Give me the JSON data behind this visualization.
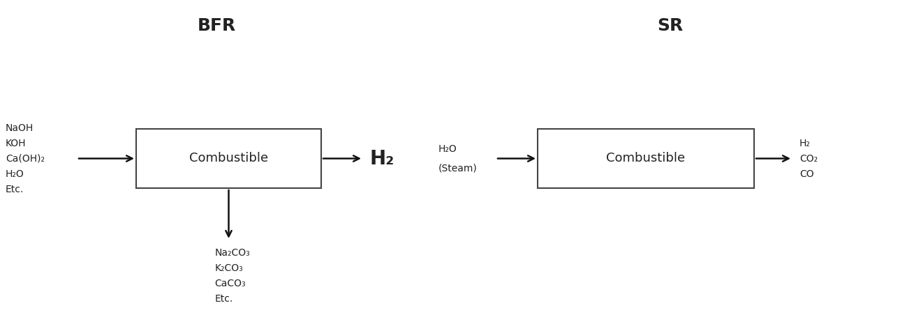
{
  "title_bfr": "BFR",
  "title_sr": "SR",
  "bfr_box_label": "Combustible",
  "sr_box_label": "Combustible",
  "bfr_inputs": [
    "NaOH",
    "KOH",
    "Ca(OH)₂",
    "H₂O",
    "Etc."
  ],
  "bfr_output": "H₂",
  "bfr_byproducts": [
    "Na₂CO₃",
    "K₂CO₃",
    "CaCO₃",
    "Etc."
  ],
  "sr_input_line1": "H₂O",
  "sr_input_line2": "(Steam)",
  "sr_outputs": [
    "H₂",
    "CO₂",
    "CO"
  ],
  "bg_color": "#ffffff",
  "box_color": "#ffffff",
  "box_edge_color": "#444444",
  "text_color": "#222222",
  "arrow_color": "#111111"
}
